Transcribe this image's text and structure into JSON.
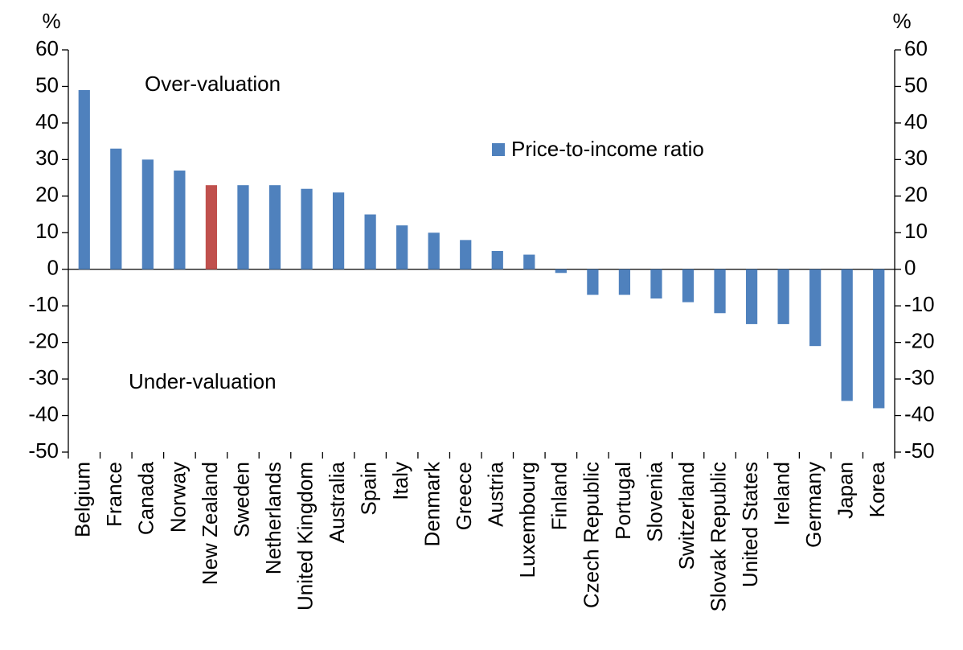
{
  "chart_data": {
    "type": "bar",
    "ylabel": "%",
    "y2label": "%",
    "annotations": [
      "Over-valuation",
      "Under-valuation"
    ],
    "categories": [
      "Belgium",
      "France",
      "Canada",
      "Norway",
      "New Zealand",
      "Sweden",
      "Netherlands",
      "United Kingdom",
      "Australia",
      "Spain",
      "Italy",
      "Denmark",
      "Greece",
      "Austria",
      "Luxembourg",
      "Finland",
      "Czech Republic",
      "Portugal",
      "Slovenia",
      "Switzerland",
      "Slovak Republic",
      "United States",
      "Ireland",
      "Germany",
      "Japan",
      "Korea"
    ],
    "series": [
      {
        "name": "Price-to-income ratio",
        "color": "#4f81bd",
        "colors": [
          "#4f81bd",
          "#4f81bd",
          "#4f81bd",
          "#4f81bd",
          "#c0504d",
          "#4f81bd",
          "#4f81bd",
          "#4f81bd",
          "#4f81bd",
          "#4f81bd",
          "#4f81bd",
          "#4f81bd",
          "#4f81bd",
          "#4f81bd",
          "#4f81bd",
          "#4f81bd",
          "#4f81bd",
          "#4f81bd",
          "#4f81bd",
          "#4f81bd",
          "#4f81bd",
          "#4f81bd",
          "#4f81bd",
          "#4f81bd",
          "#4f81bd",
          "#4f81bd"
        ],
        "values": [
          49,
          33,
          30,
          27,
          23,
          23,
          23,
          22,
          21,
          15,
          12,
          10,
          8,
          5,
          4,
          -1,
          -7,
          -7,
          -8,
          -9,
          -12,
          -15,
          -15,
          -21,
          -36,
          -38
        ]
      }
    ],
    "ylim": [
      -50,
      60
    ],
    "yticks": [
      -50,
      -40,
      -30,
      -20,
      -10,
      0,
      10,
      20,
      30,
      40,
      50,
      60
    ],
    "y2lim": [
      -50,
      60
    ],
    "y2ticks": [
      -50,
      -40,
      -30,
      -20,
      -10,
      0,
      10,
      20,
      30,
      40,
      50,
      60
    ],
    "grid": false,
    "legend": "upper right"
  }
}
